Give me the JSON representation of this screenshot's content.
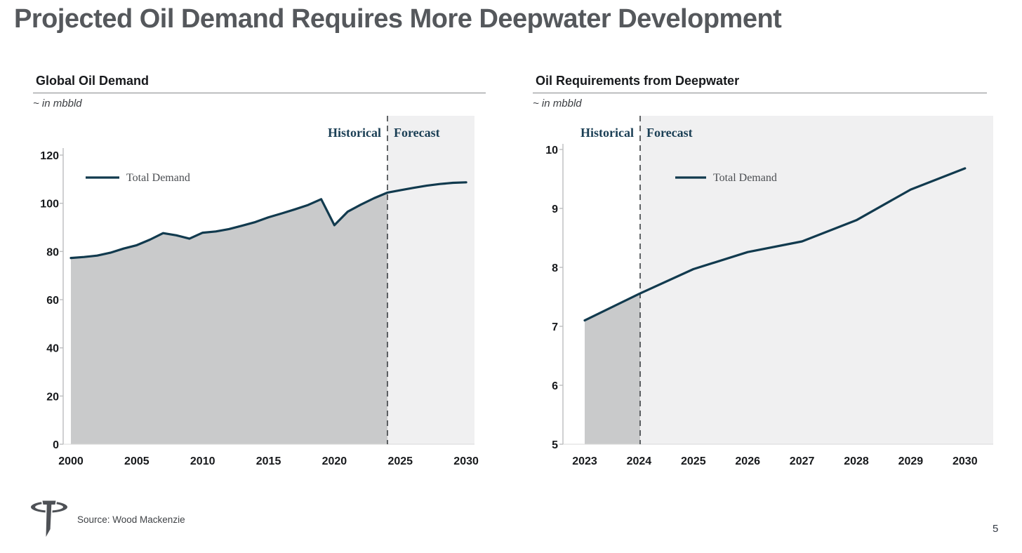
{
  "slide": {
    "title": "Projected Oil Demand Requires More Deepwater Development",
    "source_note": "Source: Wood Mackenzie",
    "page_number": "5",
    "logo": "transocean-t-logo"
  },
  "colors": {
    "accent_line": "#113a4e",
    "phase_label": "#1b3f55",
    "historical_fill": "#c9cacb",
    "forecast_bg": "#f0f0f1",
    "divider_dash": "#3c4043",
    "axis": "#bcbdbf",
    "baseline": "#d9d9d9",
    "title_text": "#55585c",
    "heading_text": "#17191c"
  },
  "chart_data": [
    {
      "id": "global-oil-demand",
      "type": "area",
      "title": "Global Oil Demand",
      "units_label": "~ in mbbld",
      "historical_label": "Historical",
      "forecast_label": "Forecast",
      "forecast_start_year": 2024,
      "grid": false,
      "legend_position": "upper-left",
      "x": [
        2000,
        2001,
        2002,
        2003,
        2004,
        2005,
        2006,
        2007,
        2008,
        2009,
        2010,
        2011,
        2012,
        2013,
        2014,
        2015,
        2016,
        2017,
        2018,
        2019,
        2020,
        2021,
        2022,
        2023,
        2024,
        2025,
        2026,
        2027,
        2028,
        2029,
        2030
      ],
      "series": [
        {
          "name": "Total Demand",
          "values": [
            77.3,
            77.7,
            78.3,
            79.5,
            81.2,
            82.6,
            84.9,
            87.6,
            86.7,
            85.3,
            87.8,
            88.3,
            89.3,
            90.7,
            92.2,
            94.2,
            95.8,
            97.5,
            99.3,
            101.7,
            90.9,
            96.5,
            99.4,
            102.1,
            104.4,
            105.4,
            106.4,
            107.3,
            108.0,
            108.5,
            108.7
          ]
        }
      ],
      "xticks": [
        2000,
        2005,
        2010,
        2015,
        2020,
        2025,
        2030
      ],
      "yticks": [
        0,
        20,
        40,
        60,
        80,
        100,
        120
      ],
      "ylim": [
        0,
        120
      ],
      "xlabel": "",
      "ylabel": ""
    },
    {
      "id": "deepwater-oil-requirements",
      "type": "area",
      "title": "Oil Requirements from Deepwater",
      "units_label": "~ in mbbld",
      "historical_label": "Historical",
      "forecast_label": "Forecast",
      "forecast_start_year": 2024,
      "grid": false,
      "legend_position": "upper-middle",
      "x": [
        2023,
        2024,
        2025,
        2026,
        2027,
        2028,
        2029,
        2030
      ],
      "series": [
        {
          "name": "Total Demand",
          "values": [
            7.1,
            7.55,
            7.97,
            8.26,
            8.44,
            8.8,
            9.32,
            9.68
          ]
        }
      ],
      "xticks": [
        2023,
        2024,
        2025,
        2026,
        2027,
        2028,
        2029,
        2030
      ],
      "yticks": [
        5,
        6,
        7,
        8,
        9,
        10
      ],
      "ylim": [
        5,
        10
      ],
      "xlabel": "",
      "ylabel": ""
    }
  ]
}
